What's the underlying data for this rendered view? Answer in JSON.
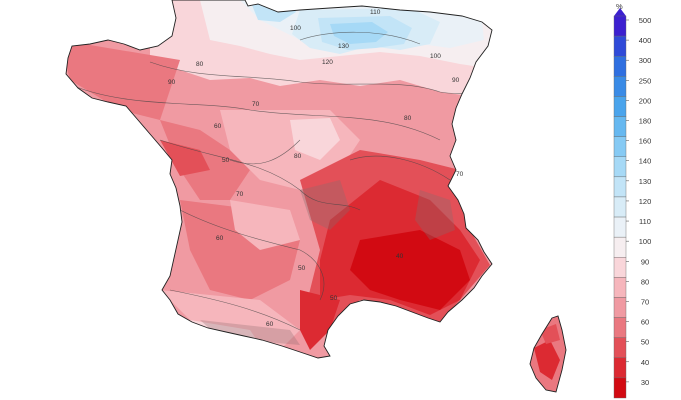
{
  "legend": {
    "unit": "%",
    "ticks": [
      "500",
      "400",
      "300",
      "250",
      "200",
      "180",
      "160",
      "140",
      "130",
      "120",
      "110",
      "100",
      "90",
      "80",
      "70",
      "60",
      "50",
      "40",
      "30"
    ],
    "colors": [
      "#3c20d0",
      "#2f4ad8",
      "#2f6fe0",
      "#3a8be6",
      "#4aa4ec",
      "#66b8f0",
      "#86caf4",
      "#a6d9f6",
      "#c2e4f7",
      "#d8ecf7",
      "#eaf1f7",
      "#f6eef0",
      "#f9d6da",
      "#f6b6bc",
      "#f09aa2",
      "#ea7880",
      "#e35058",
      "#dc2a32",
      "#d20a12"
    ]
  },
  "map": {
    "contour_labels": [
      {
        "t": "110"
      },
      {
        "t": "130"
      },
      {
        "t": "120"
      },
      {
        "t": "100"
      },
      {
        "t": "90"
      },
      {
        "t": "80"
      },
      {
        "t": "70"
      },
      {
        "t": "60"
      },
      {
        "t": "50"
      },
      {
        "t": "80"
      },
      {
        "t": "70"
      },
      {
        "t": "60"
      },
      {
        "t": "50"
      },
      {
        "t": "40"
      },
      {
        "t": "60"
      },
      {
        "t": "50"
      },
      {
        "t": "80"
      },
      {
        "t": "70"
      },
      {
        "t": "100"
      },
      {
        "t": "90"
      }
    ]
  }
}
